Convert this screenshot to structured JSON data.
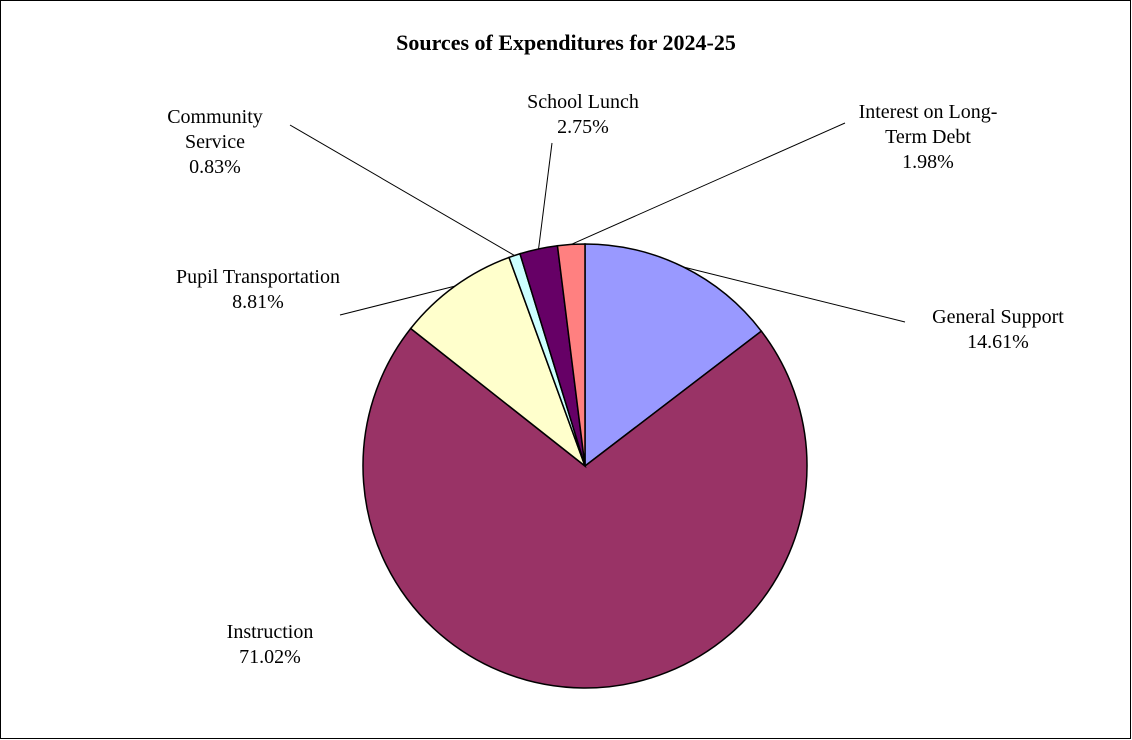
{
  "chart_data": {
    "type": "pie",
    "title": "Sources of Expenditures for 2024-25",
    "categories": [
      "General Support",
      "Instruction",
      "Pupil Transportation",
      "Community Service",
      "School Lunch",
      "Interest on Long-Term Debt"
    ],
    "values": [
      14.61,
      71.02,
      8.81,
      0.83,
      2.75,
      1.98
    ],
    "value_labels": [
      "14.61%",
      "71.02%",
      "8.81%",
      "0.83%",
      "2.75%",
      "1.98%"
    ],
    "colors": [
      "#9999ff",
      "#993366",
      "#ffffcc",
      "#ccffff",
      "#660066",
      "#ff8080"
    ]
  }
}
